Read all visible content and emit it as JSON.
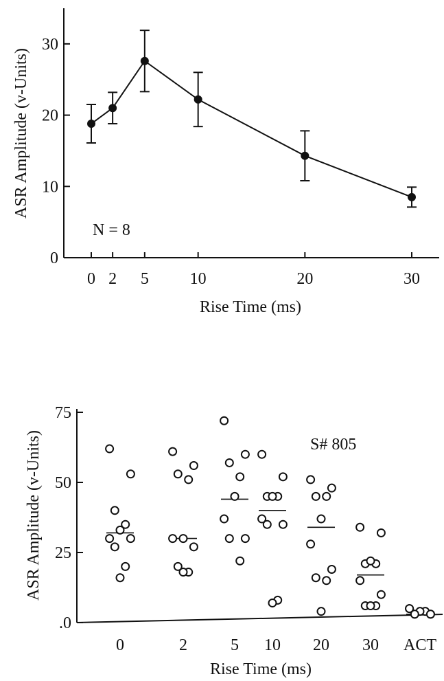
{
  "chart_data": [
    {
      "type": "line",
      "xlabel": "Rise Time (ms)",
      "ylabel": "ASR Amplitude (v-Units)",
      "annotation": "N = 8",
      "xlim": [
        -1.5,
        31
      ],
      "ylim": [
        0,
        35
      ],
      "xticks": [
        0,
        2,
        5,
        10,
        20,
        30
      ],
      "yticks": [
        0,
        10,
        20,
        30
      ],
      "x": [
        0,
        2,
        5,
        10,
        20,
        30
      ],
      "values": [
        18.8,
        21.0,
        27.6,
        22.2,
        14.3,
        8.5
      ],
      "errors": [
        2.7,
        2.2,
        4.3,
        3.8,
        3.5,
        1.4
      ],
      "grid": false
    },
    {
      "type": "scatter",
      "xlabel": "Rise Time (ms)",
      "ylabel": "ASR Amplitude (v-Units)",
      "annotation": "S# 805",
      "categories": [
        "0",
        "2",
        "5",
        "10",
        "20",
        "30",
        "ACT"
      ],
      "ylim": [
        0,
        75
      ],
      "yticks": [
        0,
        25,
        50,
        75
      ],
      "ytick_labels": [
        ".0",
        "25",
        "50",
        "75"
      ],
      "medians": [
        32,
        30,
        44,
        40,
        34,
        17,
        3
      ],
      "points": [
        [
          62,
          53,
          40,
          35,
          33,
          30,
          30,
          27,
          20,
          16
        ],
        [
          61,
          56,
          53,
          51,
          30,
          30,
          27,
          20,
          18,
          18
        ],
        [
          72,
          60,
          57,
          52,
          45,
          37,
          30,
          30,
          22
        ],
        [
          60,
          52,
          45,
          45,
          45,
          37,
          35,
          35,
          8,
          7
        ],
        [
          51,
          48,
          45,
          45,
          37,
          28,
          19,
          16,
          15,
          4
        ],
        [
          34,
          32,
          21,
          21,
          22,
          15,
          10,
          6,
          6,
          6
        ],
        [
          5,
          3,
          3,
          4,
          4,
          5,
          3,
          3
        ]
      ],
      "grid": false
    }
  ]
}
